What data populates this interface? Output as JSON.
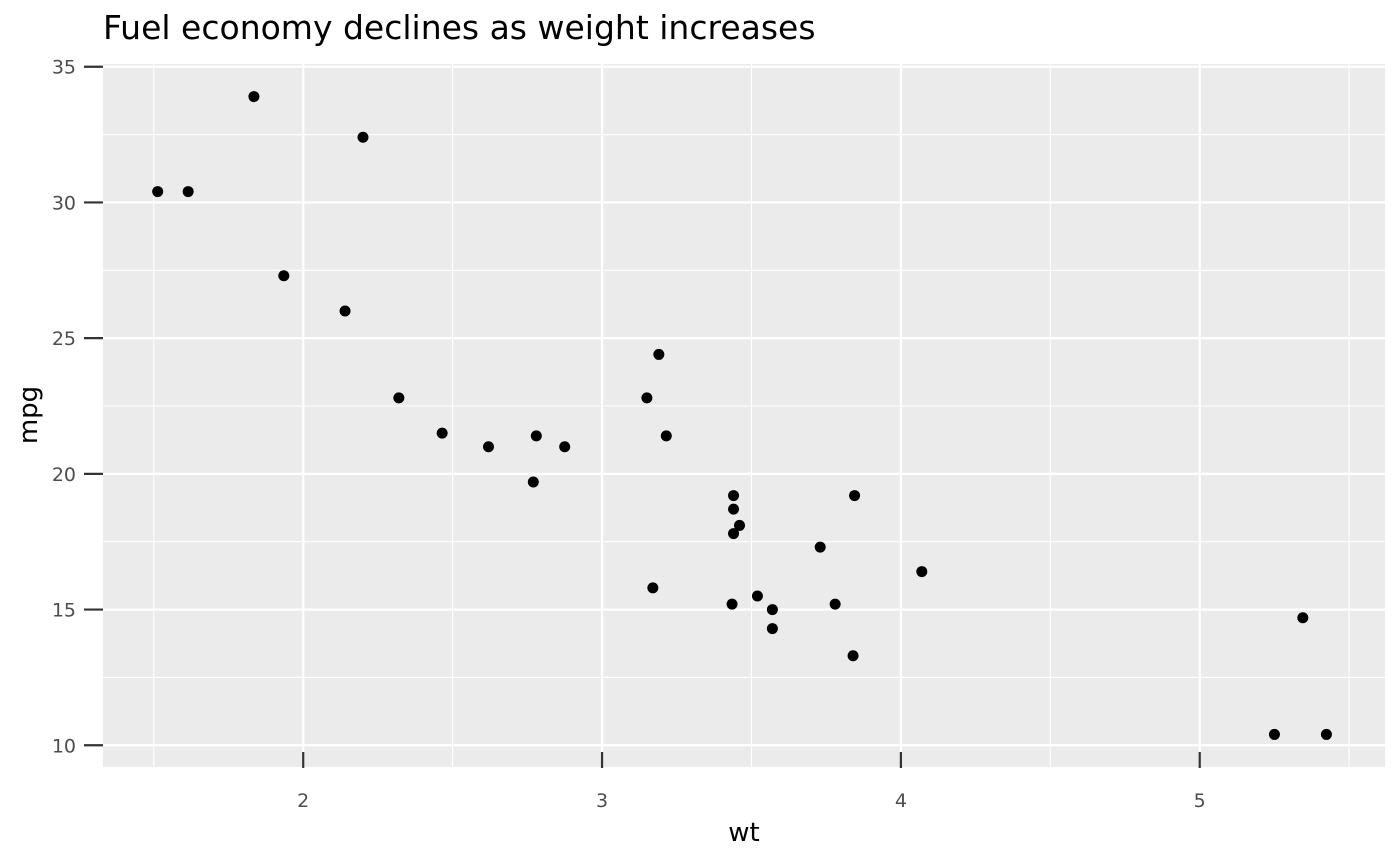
{
  "chart_data": {
    "type": "scatter",
    "title": "Fuel economy declines as weight increases",
    "xlabel": "wt",
    "ylabel": "mpg",
    "xlim": [
      1.33,
      5.62
    ],
    "ylim": [
      9.2,
      35.1
    ],
    "x_ticks": [
      2,
      3,
      4,
      5
    ],
    "x_minor": [
      1.5,
      2.5,
      3.5,
      4.5,
      5.5
    ],
    "y_ticks": [
      10,
      15,
      20,
      25,
      30,
      35
    ],
    "y_minor": [
      12.5,
      17.5,
      22.5,
      27.5,
      32.5
    ],
    "grid": true,
    "background": "#ebebeb",
    "point_color": "#000000",
    "points": [
      {
        "x": 2.62,
        "y": 21.0
      },
      {
        "x": 2.875,
        "y": 21.0
      },
      {
        "x": 2.32,
        "y": 22.8
      },
      {
        "x": 3.215,
        "y": 21.4
      },
      {
        "x": 3.44,
        "y": 18.7
      },
      {
        "x": 3.46,
        "y": 18.1
      },
      {
        "x": 3.57,
        "y": 14.3
      },
      {
        "x": 3.19,
        "y": 24.4
      },
      {
        "x": 3.15,
        "y": 22.8
      },
      {
        "x": 3.44,
        "y": 19.2
      },
      {
        "x": 3.44,
        "y": 17.8
      },
      {
        "x": 4.07,
        "y": 16.4
      },
      {
        "x": 3.73,
        "y": 17.3
      },
      {
        "x": 3.78,
        "y": 15.2
      },
      {
        "x": 5.25,
        "y": 10.4
      },
      {
        "x": 5.424,
        "y": 10.4
      },
      {
        "x": 5.345,
        "y": 14.7
      },
      {
        "x": 2.2,
        "y": 32.4
      },
      {
        "x": 1.615,
        "y": 30.4
      },
      {
        "x": 1.835,
        "y": 33.9
      },
      {
        "x": 2.465,
        "y": 21.5
      },
      {
        "x": 3.52,
        "y": 15.5
      },
      {
        "x": 3.435,
        "y": 15.2
      },
      {
        "x": 3.84,
        "y": 13.3
      },
      {
        "x": 3.845,
        "y": 19.2
      },
      {
        "x": 1.935,
        "y": 27.3
      },
      {
        "x": 2.14,
        "y": 26.0
      },
      {
        "x": 1.513,
        "y": 30.4
      },
      {
        "x": 3.17,
        "y": 15.8
      },
      {
        "x": 2.77,
        "y": 19.7
      },
      {
        "x": 3.57,
        "y": 15.0
      },
      {
        "x": 2.78,
        "y": 21.4
      }
    ]
  }
}
